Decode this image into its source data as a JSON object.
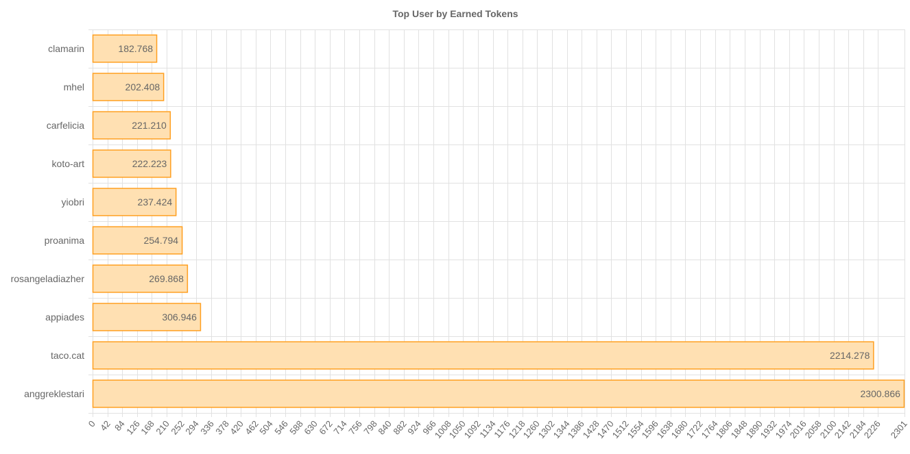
{
  "chart_data": {
    "type": "bar",
    "orientation": "horizontal",
    "title": "Top User by Earned Tokens",
    "xlabel": "",
    "ylabel": "",
    "categories": [
      "clamarin",
      "mhel",
      "carfelicia",
      "koto-art",
      "yiobri",
      "proanima",
      "rosangeladiazher",
      "appiades",
      "taco.cat",
      "anggreklestari"
    ],
    "values": [
      182.768,
      202.408,
      221.21,
      222.223,
      237.424,
      254.794,
      269.868,
      306.946,
      2214.278,
      2300.866
    ],
    "value_labels": [
      "182.768",
      "202.408",
      "221.210",
      "222.223",
      "237.424",
      "254.794",
      "269.868",
      "306.946",
      "2214.278",
      "2300.866"
    ],
    "xlim": [
      0,
      2301
    ],
    "ticks": [
      0,
      42,
      84,
      126,
      168,
      210,
      252,
      294,
      336,
      378,
      420,
      462,
      504,
      546,
      588,
      630,
      672,
      714,
      756,
      798,
      840,
      882,
      924,
      966,
      1008,
      1050,
      1092,
      1134,
      1176,
      1218,
      1260,
      1302,
      1344,
      1386,
      1428,
      1470,
      1512,
      1554,
      1596,
      1638,
      1680,
      1722,
      1764,
      1806,
      1848,
      1890,
      1932,
      1974,
      2016,
      2058,
      2100,
      2142,
      2184,
      2226,
      2301
    ],
    "grid": true,
    "legend": "none",
    "colors": {
      "bar_fill": "#ffe0b2",
      "bar_stroke": "#ff9f1f",
      "grid": "#e1e1e1",
      "text": "#666666"
    }
  }
}
